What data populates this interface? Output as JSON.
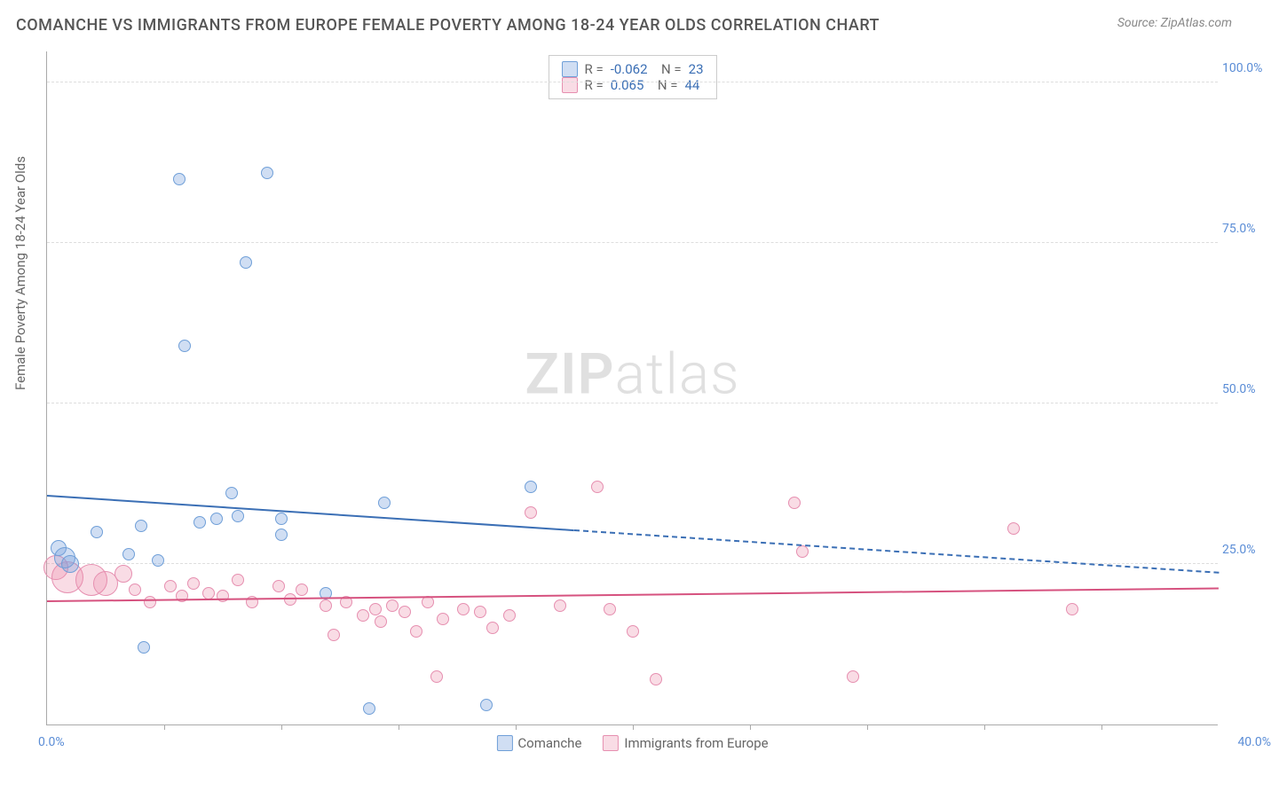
{
  "header": {
    "title": "COMANCHE VS IMMIGRANTS FROM EUROPE FEMALE POVERTY AMONG 18-24 YEAR OLDS CORRELATION CHART",
    "source": "Source: ZipAtlas.com"
  },
  "yaxis": {
    "label": "Female Poverty Among 18-24 Year Olds",
    "ticks": [
      25.0,
      50.0,
      75.0,
      100.0
    ],
    "tick_labels": [
      "25.0%",
      "50.0%",
      "75.0%",
      "100.0%"
    ],
    "min": 0,
    "max": 105,
    "tick_color": "#5b8dd6"
  },
  "xaxis": {
    "min": 0,
    "max": 40,
    "left_label": "0.0%",
    "right_label": "40.0%",
    "label_color": "#5b8dd6",
    "tick_positions": [
      4,
      8,
      12,
      16,
      20,
      24,
      28,
      32,
      36
    ]
  },
  "series": {
    "a": {
      "name": "Comanche",
      "fill": "rgba(120,160,220,0.35)",
      "stroke": "#6f9fd8",
      "line_color": "#3b6fb5",
      "R": "-0.062",
      "N": "23",
      "trend": {
        "y_at_x0": 35.5,
        "y_at_xmax": 23.5,
        "solid_until_x": 18
      },
      "points": [
        {
          "x": 0.4,
          "y": 27.5,
          "r": 9
        },
        {
          "x": 0.6,
          "y": 26.0,
          "r": 12
        },
        {
          "x": 0.8,
          "y": 25.0,
          "r": 10
        },
        {
          "x": 1.7,
          "y": 30.0,
          "r": 7
        },
        {
          "x": 2.8,
          "y": 26.5,
          "r": 7
        },
        {
          "x": 3.2,
          "y": 31.0,
          "r": 7
        },
        {
          "x": 3.3,
          "y": 12.0,
          "r": 7
        },
        {
          "x": 3.8,
          "y": 25.5,
          "r": 7
        },
        {
          "x": 4.5,
          "y": 85.0,
          "r": 7
        },
        {
          "x": 4.7,
          "y": 59.0,
          "r": 7
        },
        {
          "x": 5.2,
          "y": 31.5,
          "r": 7
        },
        {
          "x": 5.8,
          "y": 32.0,
          "r": 7
        },
        {
          "x": 6.5,
          "y": 32.5,
          "r": 7
        },
        {
          "x": 6.8,
          "y": 72.0,
          "r": 7
        },
        {
          "x": 6.3,
          "y": 36.0,
          "r": 7
        },
        {
          "x": 7.5,
          "y": 86.0,
          "r": 7
        },
        {
          "x": 8.0,
          "y": 29.5,
          "r": 7
        },
        {
          "x": 8.0,
          "y": 32.0,
          "r": 7
        },
        {
          "x": 9.5,
          "y": 20.5,
          "r": 7
        },
        {
          "x": 11.0,
          "y": 2.5,
          "r": 7
        },
        {
          "x": 11.5,
          "y": 34.5,
          "r": 7
        },
        {
          "x": 15.0,
          "y": 3.0,
          "r": 7
        },
        {
          "x": 16.5,
          "y": 37.0,
          "r": 7
        }
      ]
    },
    "b": {
      "name": "Immigrants from Europe",
      "fill": "rgba(235,140,170,0.30)",
      "stroke": "#e68fb0",
      "line_color": "#d6527f",
      "R": "0.065",
      "N": "44",
      "trend": {
        "y_at_x0": 19.0,
        "y_at_xmax": 21.0,
        "solid_until_x": 40
      },
      "points": [
        {
          "x": 0.3,
          "y": 24.5,
          "r": 14
        },
        {
          "x": 0.7,
          "y": 23.0,
          "r": 18
        },
        {
          "x": 1.5,
          "y": 22.5,
          "r": 18
        },
        {
          "x": 2.0,
          "y": 22.0,
          "r": 14
        },
        {
          "x": 2.6,
          "y": 23.5,
          "r": 10
        },
        {
          "x": 3.0,
          "y": 21.0,
          "r": 7
        },
        {
          "x": 3.5,
          "y": 19.0,
          "r": 7
        },
        {
          "x": 4.2,
          "y": 21.5,
          "r": 7
        },
        {
          "x": 4.6,
          "y": 20.0,
          "r": 7
        },
        {
          "x": 5.0,
          "y": 22.0,
          "r": 7
        },
        {
          "x": 5.5,
          "y": 20.5,
          "r": 7
        },
        {
          "x": 6.0,
          "y": 20.0,
          "r": 7
        },
        {
          "x": 6.5,
          "y": 22.5,
          "r": 7
        },
        {
          "x": 7.0,
          "y": 19.0,
          "r": 7
        },
        {
          "x": 7.9,
          "y": 21.5,
          "r": 7
        },
        {
          "x": 8.3,
          "y": 19.5,
          "r": 7
        },
        {
          "x": 8.7,
          "y": 21.0,
          "r": 7
        },
        {
          "x": 9.5,
          "y": 18.5,
          "r": 7
        },
        {
          "x": 9.8,
          "y": 14.0,
          "r": 7
        },
        {
          "x": 10.2,
          "y": 19.0,
          "r": 7
        },
        {
          "x": 10.8,
          "y": 17.0,
          "r": 7
        },
        {
          "x": 11.2,
          "y": 18.0,
          "r": 7
        },
        {
          "x": 11.4,
          "y": 16.0,
          "r": 7
        },
        {
          "x": 11.8,
          "y": 18.5,
          "r": 7
        },
        {
          "x": 12.2,
          "y": 17.5,
          "r": 7
        },
        {
          "x": 12.6,
          "y": 14.5,
          "r": 7
        },
        {
          "x": 13.0,
          "y": 19.0,
          "r": 7
        },
        {
          "x": 13.3,
          "y": 7.5,
          "r": 7
        },
        {
          "x": 13.5,
          "y": 16.5,
          "r": 7
        },
        {
          "x": 14.2,
          "y": 18.0,
          "r": 7
        },
        {
          "x": 14.8,
          "y": 17.5,
          "r": 7
        },
        {
          "x": 15.2,
          "y": 15.0,
          "r": 7
        },
        {
          "x": 15.8,
          "y": 17.0,
          "r": 7
        },
        {
          "x": 16.5,
          "y": 33.0,
          "r": 7
        },
        {
          "x": 17.5,
          "y": 18.5,
          "r": 7
        },
        {
          "x": 18.8,
          "y": 37.0,
          "r": 7
        },
        {
          "x": 19.2,
          "y": 18.0,
          "r": 7
        },
        {
          "x": 20.0,
          "y": 14.5,
          "r": 7
        },
        {
          "x": 20.8,
          "y": 7.0,
          "r": 7
        },
        {
          "x": 25.5,
          "y": 34.5,
          "r": 7
        },
        {
          "x": 25.8,
          "y": 27.0,
          "r": 7
        },
        {
          "x": 27.5,
          "y": 7.5,
          "r": 7
        },
        {
          "x": 33.0,
          "y": 30.5,
          "r": 7
        },
        {
          "x": 35.0,
          "y": 18.0,
          "r": 7
        }
      ]
    }
  },
  "stats_color": "#3b6fb5",
  "watermark": {
    "zip": "ZIP",
    "atlas": "atlas"
  }
}
